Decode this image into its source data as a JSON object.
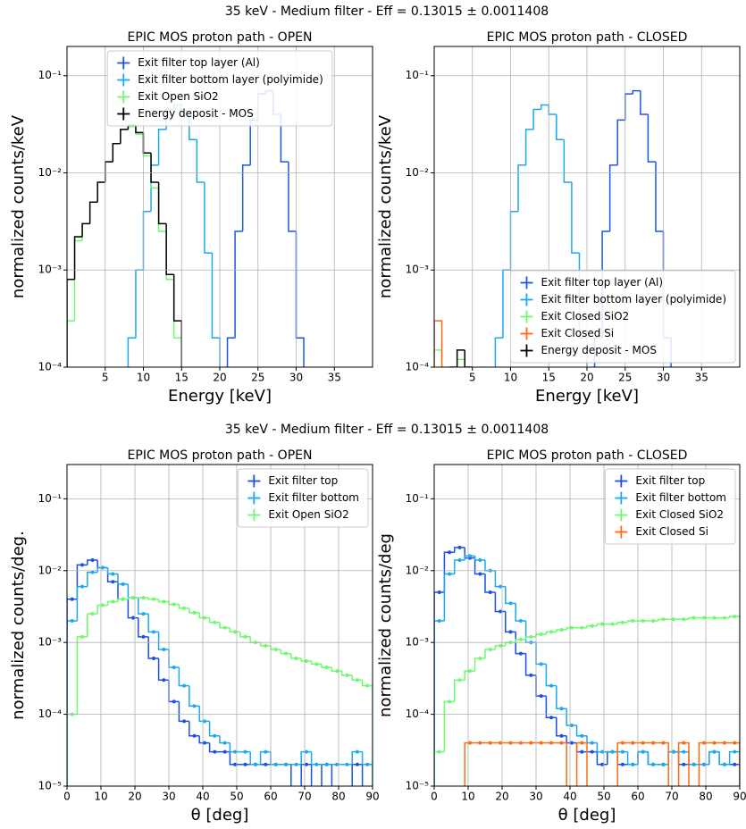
{
  "figure_titles": [
    "35 keV - Medium filter - Eff = 0.13015 ± 0.0011408",
    "35 keV - Medium filter - Eff = 0.13015 ± 0.0011408"
  ],
  "chart_data": [
    {
      "type": "histogram",
      "title": "EPIC MOS proton path - OPEN",
      "x_label": "Energy [keV]",
      "y_label": "normalized counts/keV",
      "log_y": true,
      "grid": true,
      "legend": "upper center",
      "markers": false,
      "xlim": [
        0,
        40
      ],
      "xticks": [
        5,
        10,
        15,
        20,
        25,
        30,
        35
      ],
      "ylim": [
        0.0001,
        0.2
      ],
      "yticks": [
        {
          "value": 0.0001,
          "label": "10⁻⁴"
        },
        {
          "value": 0.001,
          "label": "10⁻³"
        },
        {
          "value": 0.01,
          "label": "10⁻²"
        },
        {
          "value": 0.1,
          "label": "10⁻¹"
        }
      ],
      "series": [
        {
          "name": "Exit filter top layer (Al)",
          "color": "#1c56e6",
          "bins": [
            21,
            22,
            23,
            24,
            25,
            26,
            27,
            28,
            29,
            30,
            31
          ],
          "values": [
            0.0002,
            0.0025,
            0.012,
            0.035,
            0.065,
            0.07,
            0.04,
            0.013,
            0.0025,
            0.0002
          ]
        },
        {
          "name": "Exit filter bottom layer (polyimide)",
          "color": "#1aa8ee",
          "bins": [
            8,
            9,
            10,
            11,
            12,
            13,
            14,
            15,
            16,
            17,
            18,
            19,
            20
          ],
          "values": [
            0.0002,
            0.001,
            0.004,
            0.012,
            0.028,
            0.045,
            0.05,
            0.04,
            0.022,
            0.008,
            0.0015,
            0.0002
          ]
        },
        {
          "name": "Exit Open SiO2",
          "color": "#6dfb6d",
          "bins": [
            0,
            1,
            2,
            3,
            4,
            5,
            6,
            7,
            8,
            9,
            10,
            11,
            12,
            13,
            14,
            15
          ],
          "values": [
            0.0003,
            0.002,
            0.003,
            0.005,
            0.008,
            0.013,
            0.02,
            0.028,
            0.03,
            0.025,
            0.015,
            0.007,
            0.0025,
            0.0008,
            0.0002
          ]
        },
        {
          "name": "Energy deposit - MOS",
          "color": "#000000",
          "bins": [
            0,
            1,
            2,
            3,
            4,
            5,
            6,
            7,
            8,
            9,
            10,
            11,
            12,
            13,
            14,
            15
          ],
          "values": [
            0.0008,
            0.0022,
            0.003,
            0.005,
            0.008,
            0.013,
            0.02,
            0.028,
            0.031,
            0.026,
            0.016,
            0.008,
            0.003,
            0.0009,
            0.0003
          ]
        }
      ]
    },
    {
      "type": "histogram",
      "title": "EPIC MOS proton path - CLOSED",
      "x_label": "Energy [keV]",
      "y_label": "normalized counts/keV",
      "log_y": true,
      "grid": true,
      "legend": "lower right",
      "markers": false,
      "xlim": [
        0,
        40
      ],
      "xticks": [
        5,
        10,
        15,
        20,
        25,
        30,
        35
      ],
      "ylim": [
        0.0001,
        0.2
      ],
      "yticks": [
        {
          "value": 0.0001,
          "label": "10⁻⁴"
        },
        {
          "value": 0.001,
          "label": "10⁻³"
        },
        {
          "value": 0.01,
          "label": "10⁻²"
        },
        {
          "value": 0.1,
          "label": "10⁻¹"
        }
      ],
      "series": [
        {
          "name": "Exit filter top layer (Al)",
          "color": "#1c56e6",
          "bins": [
            21,
            22,
            23,
            24,
            25,
            26,
            27,
            28,
            29,
            30,
            31
          ],
          "values": [
            0.0002,
            0.0025,
            0.012,
            0.035,
            0.065,
            0.07,
            0.04,
            0.013,
            0.0025,
            0.0002
          ]
        },
        {
          "name": "Exit filter bottom layer (polyimide)",
          "color": "#1aa8ee",
          "bins": [
            8,
            9,
            10,
            11,
            12,
            13,
            14,
            15,
            16,
            17,
            18,
            19,
            20
          ],
          "values": [
            0.0002,
            0.001,
            0.004,
            0.012,
            0.028,
            0.045,
            0.05,
            0.04,
            0.022,
            0.008,
            0.0015,
            0.0002
          ]
        },
        {
          "name": "Exit Closed SiO2",
          "color": "#6dfb6d",
          "bins": [
            0,
            1,
            2,
            3,
            4,
            5,
            6,
            7
          ],
          "values": [
            0.00015,
            0.0001,
            null,
            0.00012,
            0.0001,
            null,
            0.0001
          ]
        },
        {
          "name": "Exit Closed Si",
          "color": "#ff6a10",
          "bins": [
            0,
            1,
            2
          ],
          "values": [
            0.0003,
            null
          ]
        },
        {
          "name": "Energy deposit - MOS",
          "color": "#000000",
          "bins": [
            2,
            3,
            4,
            5
          ],
          "values": [
            0.0001,
            0.00015,
            0.0001
          ]
        }
      ]
    },
    {
      "type": "histogram",
      "title": "EPIC MOS proton path - OPEN",
      "x_label": "θ [deg]",
      "y_label": "normalized counts/deg.",
      "log_y": true,
      "grid": true,
      "legend": "upper right",
      "markers": true,
      "xlim": [
        0,
        90
      ],
      "xticks": [
        0,
        10,
        20,
        30,
        40,
        50,
        60,
        70,
        80,
        90
      ],
      "ylim": [
        1e-05,
        0.3
      ],
      "yticks": [
        {
          "value": 1e-05,
          "label": "10⁻⁵"
        },
        {
          "value": 0.0001,
          "label": "10⁻⁴"
        },
        {
          "value": 0.001,
          "label": "10⁻³"
        },
        {
          "value": 0.01,
          "label": "10⁻²"
        },
        {
          "value": 0.1,
          "label": "10⁻¹"
        }
      ],
      "bins": [
        0,
        3,
        6,
        9,
        12,
        15,
        18,
        21,
        24,
        27,
        30,
        33,
        36,
        39,
        42,
        45,
        48,
        51,
        54,
        57,
        60,
        63,
        66,
        69,
        72,
        75,
        78,
        81,
        84,
        87,
        90
      ],
      "series": [
        {
          "name": "Exit filter top",
          "color": "#1c4fe6",
          "values": [
            0.004,
            0.012,
            0.014,
            0.011,
            0.007,
            0.004,
            0.0022,
            0.0012,
            0.0006,
            0.0003,
            0.00015,
            8e-05,
            5e-05,
            4e-05,
            3e-05,
            3e-05,
            2e-05,
            2e-05,
            2e-05,
            2e-05,
            2e-05,
            2e-05,
            null,
            2e-05,
            null,
            2e-05,
            null,
            null,
            2e-05,
            null
          ]
        },
        {
          "name": "Exit filter bottom",
          "color": "#1aa8ee",
          "values": [
            0.002,
            0.006,
            0.0095,
            0.011,
            0.009,
            0.0065,
            0.0042,
            0.0025,
            0.0014,
            0.0008,
            0.00045,
            0.00025,
            0.00013,
            8e-05,
            5e-05,
            4e-05,
            3e-05,
            3e-05,
            2e-05,
            3e-05,
            2e-05,
            2e-05,
            2e-05,
            3e-05,
            2e-05,
            2e-05,
            2e-05,
            2e-05,
            3e-05,
            2e-05
          ]
        },
        {
          "name": "Exit Open SiO2",
          "color": "#6dfb6d",
          "values": [
            0.0001,
            0.0012,
            0.0025,
            0.0033,
            0.0037,
            0.004,
            0.0042,
            0.0042,
            0.004,
            0.0037,
            0.0034,
            0.003,
            0.0026,
            0.0022,
            0.0019,
            0.0016,
            0.0014,
            0.0012,
            0.001,
            0.0009,
            0.0008,
            0.0007,
            0.0006,
            0.00055,
            0.0005,
            0.00045,
            0.0004,
            0.00035,
            0.0003,
            0.00025
          ]
        }
      ]
    },
    {
      "type": "histogram",
      "title": "EPIC MOS proton path - CLOSED",
      "x_label": "θ [deg]",
      "y_label": "normalized counts/deg",
      "log_y": true,
      "grid": true,
      "legend": "upper right",
      "markers": true,
      "xlim": [
        0,
        90
      ],
      "xticks": [
        0,
        10,
        20,
        30,
        40,
        50,
        60,
        70,
        80,
        90
      ],
      "ylim": [
        1e-05,
        0.3
      ],
      "yticks": [
        {
          "value": 1e-05,
          "label": "10⁻⁵"
        },
        {
          "value": 0.0001,
          "label": "10⁻⁴"
        },
        {
          "value": 0.001,
          "label": "10⁻³"
        },
        {
          "value": 0.01,
          "label": "10⁻²"
        },
        {
          "value": 0.1,
          "label": "10⁻¹"
        }
      ],
      "bins": [
        0,
        3,
        6,
        9,
        12,
        15,
        18,
        21,
        24,
        27,
        30,
        33,
        36,
        39,
        42,
        45,
        48,
        51,
        54,
        57,
        60,
        63,
        66,
        69,
        72,
        75,
        78,
        81,
        84,
        87,
        90
      ],
      "series": [
        {
          "name": "Exit filter top",
          "color": "#1c4fe6",
          "values": [
            0.005,
            0.018,
            0.021,
            0.015,
            0.009,
            0.005,
            0.0027,
            0.0014,
            0.0007,
            0.00035,
            0.00018,
            9e-05,
            5e-05,
            4e-05,
            3e-05,
            3e-05,
            2e-05,
            3e-05,
            2e-05,
            2e-05,
            3e-05,
            2e-05,
            2e-05,
            3e-05,
            2e-05,
            2e-05,
            2e-05,
            3e-05,
            2e-05,
            2e-05
          ]
        },
        {
          "name": "Exit filter bottom",
          "color": "#1aa8ee",
          "values": [
            0.002,
            0.009,
            0.014,
            0.016,
            0.014,
            0.01,
            0.006,
            0.0035,
            0.002,
            0.001,
            0.0005,
            0.00025,
            0.00012,
            7e-05,
            5e-05,
            4e-05,
            3e-05,
            3e-05,
            3e-05,
            2e-05,
            3e-05,
            2e-05,
            2e-05,
            3e-05,
            3e-05,
            2e-05,
            2e-05,
            3e-05,
            2e-05,
            3e-05
          ]
        },
        {
          "name": "Exit Closed SiO2",
          "color": "#6dfb6d",
          "values": [
            3e-05,
            0.00015,
            0.0003,
            0.0004,
            0.0006,
            0.0008,
            0.0009,
            0.001,
            0.0011,
            0.0012,
            0.0013,
            0.0014,
            0.0015,
            0.0016,
            0.0016,
            0.0017,
            0.0018,
            0.0018,
            0.0019,
            0.002,
            0.002,
            0.002,
            0.0021,
            0.0021,
            0.0021,
            0.0022,
            0.0022,
            0.0022,
            0.0022,
            0.0023
          ]
        },
        {
          "name": "Exit Closed Si",
          "color": "#ff6a10",
          "values": [
            null,
            null,
            null,
            4e-05,
            4e-05,
            4e-05,
            4e-05,
            4e-05,
            4e-05,
            4e-05,
            4e-05,
            4e-05,
            4e-05,
            null,
            4e-05,
            null,
            null,
            null,
            4e-05,
            4e-05,
            4e-05,
            4e-05,
            4e-05,
            null,
            4e-05,
            null,
            4e-05,
            4e-05,
            4e-05,
            4e-05
          ]
        }
      ]
    }
  ]
}
